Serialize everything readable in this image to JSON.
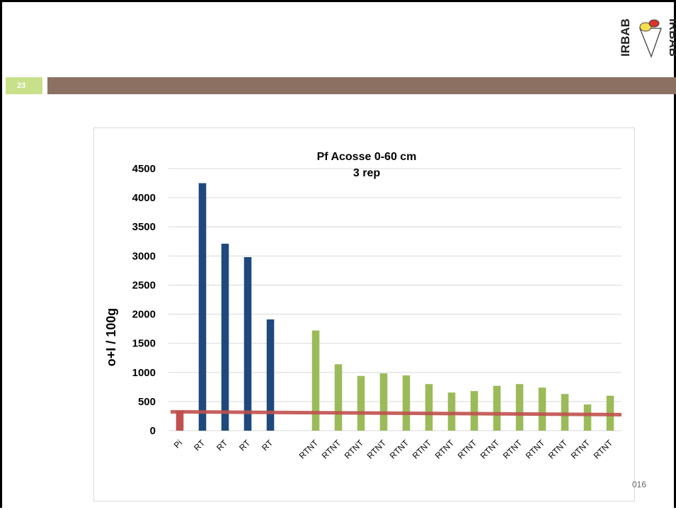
{
  "slide": {
    "number": "23",
    "footer": "016",
    "logo_text": "IRBAB",
    "header_color": "#8c7163",
    "number_bg_color": "#c8e08a"
  },
  "chart_data": {
    "type": "bar",
    "title": "Pf Acosse 0-60 cm",
    "subtitle": "3 rep",
    "ylabel": "o+I / 100g",
    "xlabel": "",
    "ylim": [
      0,
      4500
    ],
    "yticks": [
      0,
      500,
      1000,
      1500,
      2000,
      2500,
      3000,
      3500,
      4000,
      4500
    ],
    "grid": true,
    "categories": [
      "Pi",
      "RT",
      "RT",
      "RT",
      "RT",
      "RTNT",
      "RTNT",
      "RTNT",
      "RTNT",
      "RTNT",
      "RTNT",
      "RTNT",
      "RTNT",
      "RTNT",
      "RTNT",
      "RTNT",
      "RTNT",
      "RTNT",
      "RTNT"
    ],
    "gap_after_index": 4,
    "values": [
      340,
      4250,
      3210,
      2980,
      1910,
      1720,
      1140,
      940,
      985,
      950,
      800,
      655,
      680,
      770,
      800,
      740,
      630,
      450,
      600
    ],
    "bar_groups": [
      0,
      1,
      1,
      1,
      1,
      2,
      2,
      2,
      2,
      2,
      2,
      2,
      2,
      2,
      2,
      2,
      2,
      2,
      2
    ],
    "group_colors": [
      "#c0504d",
      "#1f497d",
      "#9bbb59"
    ],
    "reference_line": {
      "value": 300,
      "color": "#c0504d"
    }
  }
}
